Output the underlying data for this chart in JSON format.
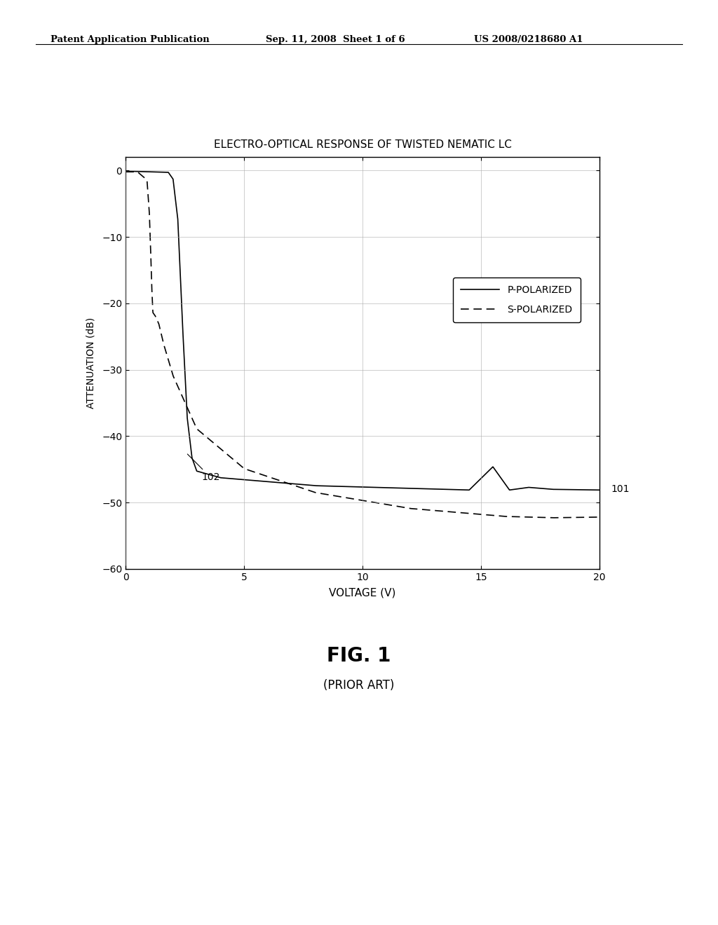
{
  "title": "ELECTRO-OPTICAL RESPONSE OF TWISTED NEMATIC LC",
  "xlabel": "VOLTAGE (V)",
  "ylabel": "ATTENUATION (dB)",
  "xlim": [
    0,
    20
  ],
  "ylim": [
    -60,
    2
  ],
  "xticks": [
    0,
    5,
    10,
    15,
    20
  ],
  "yticks": [
    0,
    -10,
    -20,
    -30,
    -40,
    -50,
    -60
  ],
  "fig_label": "FIG. 1",
  "fig_sublabel": "(PRIOR ART)",
  "patent_left": "Patent Application Publication",
  "patent_mid": "Sep. 11, 2008  Sheet 1 of 6",
  "patent_right": "US 2008/0218680 A1",
  "annotation_101": "101",
  "annotation_102": "102",
  "background_color": "#ffffff",
  "line_color": "#000000",
  "grid_color": "#aaaaaa"
}
